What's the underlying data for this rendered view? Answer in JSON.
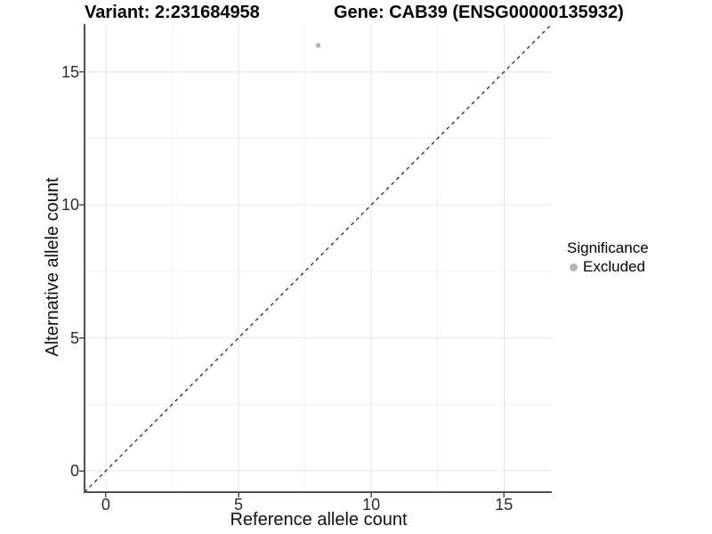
{
  "header": {
    "title_variant": "Variant: 2:231684958",
    "title_gene": "Gene: CAB39 (ENSG00000135932)"
  },
  "chart_data": {
    "type": "scatter",
    "title": "Variant: 2:231684958    Gene: CAB39 (ENSG00000135932)",
    "xlabel": "Reference allele count",
    "ylabel": "Alternative allele count",
    "xlim": [
      -0.8,
      16.8
    ],
    "ylim": [
      -0.8,
      16.8
    ],
    "x_ticks": [
      0,
      5,
      10,
      15
    ],
    "y_ticks": [
      0,
      5,
      10,
      15
    ],
    "x_minor_ticks": [
      2.5,
      7.5,
      12.5
    ],
    "y_minor_ticks": [
      2.5,
      7.5,
      12.5
    ],
    "grid": "on",
    "points": [
      {
        "x": 8,
        "y": 16,
        "series": "Excluded"
      }
    ],
    "identity_line": {
      "equation": "y = x",
      "style": "dashed"
    },
    "legend": {
      "title": "Significance",
      "position": "right",
      "items": [
        {
          "label": "Excluded",
          "color": "#b5b5b5"
        }
      ]
    }
  },
  "colors": {
    "background": "#ffffff",
    "grid_major": "#e3e3e3",
    "grid_minor": "#f0f0f0",
    "axis_line": "#4f4f4f",
    "tick_mark": "#4f4f4f",
    "dashed_line": "#1a1a1a",
    "point": "#b5b5b5"
  }
}
